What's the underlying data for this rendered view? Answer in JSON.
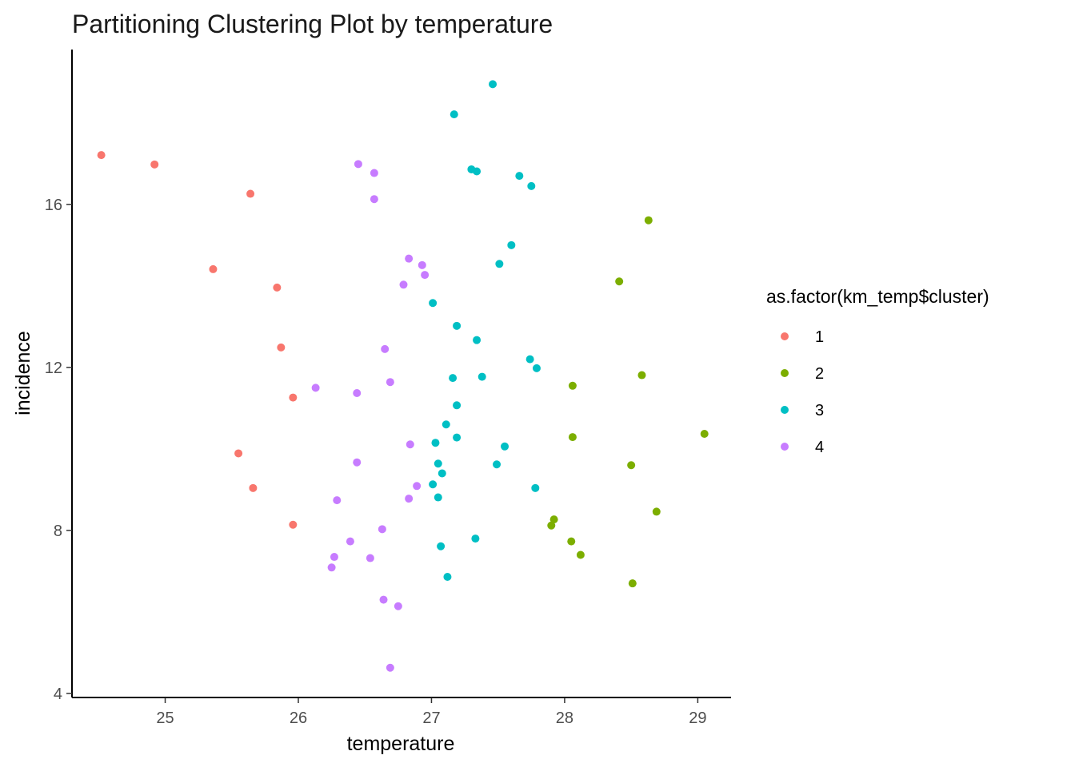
{
  "chart_data": {
    "type": "scatter",
    "title": "Partitioning Clustering Plot by temperature",
    "xlabel": "temperature",
    "ylabel": "incidence",
    "xlim": [
      24.3,
      29.25
    ],
    "ylim": [
      3.9,
      19.8
    ],
    "xticks": [
      25,
      26,
      27,
      28,
      29
    ],
    "yticks": [
      4,
      8,
      12,
      16
    ],
    "grid": false,
    "legend": {
      "title": "as.factor(km_temp$cluster)",
      "position": "right"
    },
    "series": [
      {
        "name": "1",
        "color": "#F8766D",
        "points": [
          [
            24.52,
            17.21
          ],
          [
            24.92,
            16.98
          ],
          [
            25.64,
            16.26
          ],
          [
            25.36,
            14.41
          ],
          [
            25.84,
            13.96
          ],
          [
            25.87,
            12.49
          ],
          [
            25.96,
            11.26
          ],
          [
            25.55,
            9.89
          ],
          [
            25.66,
            9.04
          ],
          [
            25.96,
            8.14
          ]
        ]
      },
      {
        "name": "2",
        "color": "#7CAE00",
        "points": [
          [
            28.63,
            15.61
          ],
          [
            28.41,
            14.11
          ],
          [
            28.58,
            11.81
          ],
          [
            28.06,
            11.55
          ],
          [
            29.05,
            10.37
          ],
          [
            28.06,
            10.29
          ],
          [
            28.5,
            9.6
          ],
          [
            28.69,
            8.46
          ],
          [
            27.92,
            8.27
          ],
          [
            27.9,
            8.12
          ],
          [
            28.05,
            7.73
          ],
          [
            28.12,
            7.4
          ],
          [
            28.51,
            6.7
          ]
        ]
      },
      {
        "name": "3",
        "color": "#00BFC4",
        "points": [
          [
            27.46,
            18.95
          ],
          [
            27.17,
            18.21
          ],
          [
            27.3,
            16.86
          ],
          [
            27.34,
            16.81
          ],
          [
            27.66,
            16.7
          ],
          [
            27.75,
            16.45
          ],
          [
            27.6,
            15.0
          ],
          [
            27.51,
            14.54
          ],
          [
            27.01,
            13.58
          ],
          [
            27.19,
            13.02
          ],
          [
            27.34,
            12.67
          ],
          [
            27.74,
            12.2
          ],
          [
            27.79,
            11.98
          ],
          [
            27.38,
            11.77
          ],
          [
            27.16,
            11.74
          ],
          [
            27.19,
            11.07
          ],
          [
            27.11,
            10.6
          ],
          [
            27.19,
            10.28
          ],
          [
            27.03,
            10.15
          ],
          [
            27.55,
            10.06
          ],
          [
            27.05,
            9.64
          ],
          [
            27.49,
            9.62
          ],
          [
            27.08,
            9.4
          ],
          [
            27.01,
            9.13
          ],
          [
            27.78,
            9.04
          ],
          [
            27.05,
            8.81
          ],
          [
            27.33,
            7.8
          ],
          [
            27.07,
            7.61
          ],
          [
            27.12,
            6.86
          ]
        ]
      },
      {
        "name": "4",
        "color": "#C77CFF",
        "points": [
          [
            26.45,
            16.99
          ],
          [
            26.57,
            16.77
          ],
          [
            26.57,
            16.13
          ],
          [
            26.83,
            14.67
          ],
          [
            26.93,
            14.51
          ],
          [
            26.95,
            14.27
          ],
          [
            26.79,
            14.03
          ],
          [
            26.65,
            12.45
          ],
          [
            26.69,
            11.64
          ],
          [
            26.13,
            11.5
          ],
          [
            26.44,
            11.37
          ],
          [
            26.84,
            10.11
          ],
          [
            26.44,
            9.67
          ],
          [
            26.89,
            9.09
          ],
          [
            26.83,
            8.78
          ],
          [
            26.29,
            8.74
          ],
          [
            26.63,
            8.03
          ],
          [
            26.39,
            7.73
          ],
          [
            26.27,
            7.35
          ],
          [
            26.54,
            7.32
          ],
          [
            26.25,
            7.09
          ],
          [
            26.64,
            6.3
          ],
          [
            26.75,
            6.14
          ],
          [
            26.69,
            4.63
          ]
        ]
      }
    ]
  }
}
